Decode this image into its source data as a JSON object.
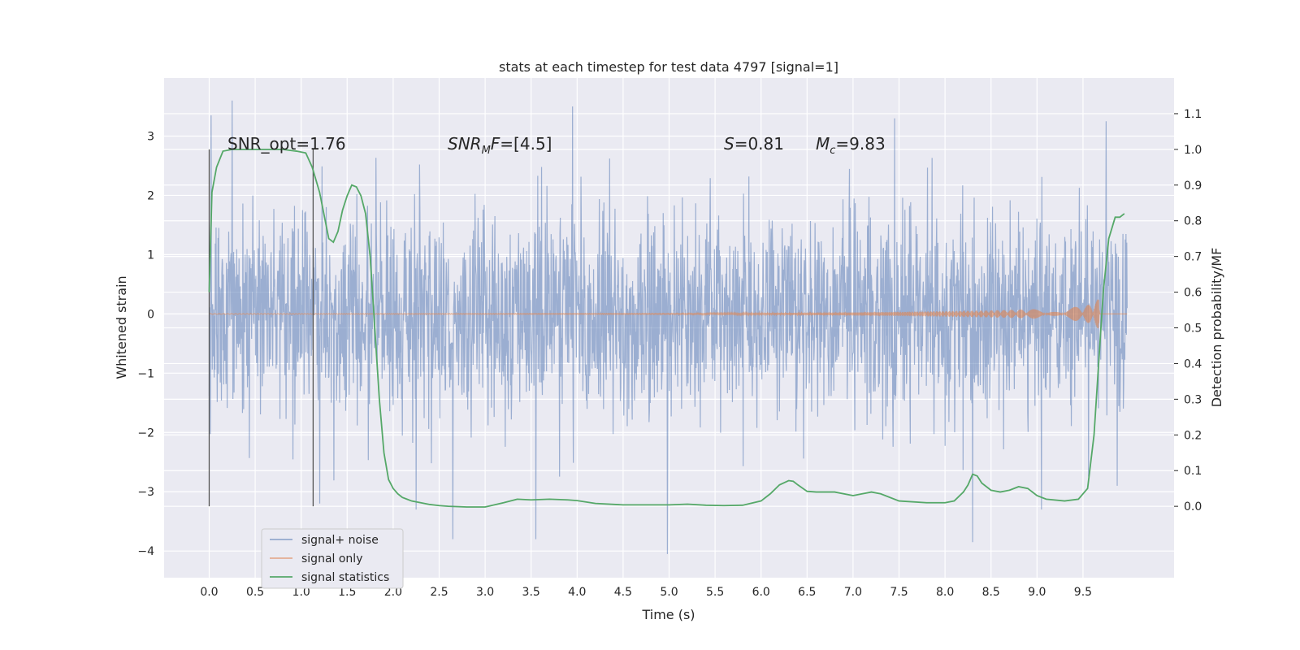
{
  "chart_data": {
    "type": "line",
    "title": "stats at each timestep for test data 4797 [signal=1]",
    "xlabel": "Time (s)",
    "ylabel": "Whitened strain",
    "y2label": "Detection probability/MF",
    "xlim": [
      -0.49,
      10.49
    ],
    "ylim": [
      -4.45,
      3.98
    ],
    "y2lim": [
      -0.2,
      1.2
    ],
    "xticks": [
      "0.0",
      "0.5",
      "1.0",
      "1.5",
      "2.0",
      "2.5",
      "3.0",
      "3.5",
      "4.0",
      "4.5",
      "5.0",
      "5.5",
      "6.0",
      "6.5",
      "7.0",
      "7.5",
      "8.0",
      "8.5",
      "9.0",
      "9.5"
    ],
    "yticks": [
      "-4",
      "-3",
      "-2",
      "-1",
      "0",
      "1",
      "2",
      "3"
    ],
    "y2ticks": [
      "0.0",
      "0.1",
      "0.2",
      "0.3",
      "0.4",
      "0.5",
      "0.6",
      "0.7",
      "0.8",
      "0.9",
      "1.0",
      "1.1"
    ],
    "grid": true,
    "legend_position": "lower-left",
    "annotations": [
      {
        "text": "SNR_opt=1.76",
        "x": 0.2
      },
      {
        "text": "SNR_MF=[4.5]",
        "x": 2.6
      },
      {
        "text": "S=0.81",
        "x": 5.6
      },
      {
        "text": "M_c=9.83",
        "x": 6.6
      }
    ],
    "vertical_markers": [
      0.0,
      1.13
    ],
    "series": [
      {
        "name": "signal+ noise",
        "color": "#4c72b0",
        "t_range": [
          0,
          9.98
        ],
        "envelope_std": 0.85,
        "extremes": [
          [
            0.02,
            3.35
          ],
          [
            0.25,
            3.6
          ],
          [
            1.2,
            -3.2
          ],
          [
            2.25,
            -3.3
          ],
          [
            2.65,
            -3.8
          ],
          [
            3.95,
            3.5
          ],
          [
            3.55,
            -3.8
          ],
          [
            4.98,
            -4.05
          ],
          [
            7.45,
            3.3
          ],
          [
            8.3,
            -3.85
          ],
          [
            9.05,
            -3.3
          ],
          [
            9.75,
            3.25
          ],
          [
            9.87,
            -2.9
          ]
        ]
      },
      {
        "name": "signal only",
        "color": "#dd8452",
        "t": [
          0,
          5.0,
          6.5,
          7.5,
          8.5,
          9.0,
          9.3,
          9.5,
          9.6,
          9.65,
          9.67,
          9.68,
          9.98
        ],
        "amplitude": [
          0.005,
          0.008,
          0.02,
          0.035,
          0.06,
          0.08,
          0.1,
          0.13,
          0.17,
          0.22,
          0.27,
          0.0,
          0.0
        ]
      },
      {
        "name": "signal statistics",
        "color": "#55a868",
        "x": [
          0.0,
          0.03,
          0.08,
          0.15,
          0.25,
          0.4,
          0.6,
          0.8,
          0.95,
          1.05,
          1.12,
          1.2,
          1.3,
          1.35,
          1.4,
          1.45,
          1.5,
          1.55,
          1.6,
          1.65,
          1.7,
          1.75,
          1.8,
          1.85,
          1.9,
          1.95,
          2.0,
          2.05,
          2.1,
          2.15,
          2.2,
          2.3,
          2.4,
          2.5,
          2.6,
          2.8,
          3.0,
          3.2,
          3.35,
          3.5,
          3.7,
          3.9,
          4.0,
          4.2,
          4.5,
          4.8,
          5.0,
          5.2,
          5.4,
          5.6,
          5.8,
          6.0,
          6.1,
          6.2,
          6.3,
          6.35,
          6.4,
          6.5,
          6.6,
          6.8,
          7.0,
          7.1,
          7.2,
          7.3,
          7.5,
          7.8,
          8.0,
          8.1,
          8.2,
          8.25,
          8.3,
          8.35,
          8.4,
          8.5,
          8.6,
          8.7,
          8.8,
          8.9,
          9.0,
          9.1,
          9.3,
          9.45,
          9.55,
          9.62,
          9.67,
          9.72,
          9.78,
          9.85,
          9.9,
          9.95
        ],
        "y": [
          0.6,
          0.88,
          0.95,
          0.995,
          1.0,
          1.0,
          1.0,
          1.0,
          0.995,
          0.99,
          0.95,
          0.88,
          0.75,
          0.74,
          0.77,
          0.83,
          0.87,
          0.9,
          0.895,
          0.87,
          0.82,
          0.7,
          0.5,
          0.3,
          0.15,
          0.075,
          0.05,
          0.035,
          0.025,
          0.02,
          0.015,
          0.01,
          0.005,
          0.002,
          0.0,
          -0.002,
          -0.002,
          0.01,
          0.02,
          0.018,
          0.02,
          0.018,
          0.016,
          0.008,
          0.004,
          0.004,
          0.004,
          0.006,
          0.003,
          0.002,
          0.003,
          0.015,
          0.035,
          0.06,
          0.072,
          0.07,
          0.06,
          0.042,
          0.04,
          0.04,
          0.03,
          0.035,
          0.04,
          0.035,
          0.015,
          0.01,
          0.01,
          0.015,
          0.04,
          0.06,
          0.09,
          0.085,
          0.065,
          0.045,
          0.04,
          0.045,
          0.055,
          0.05,
          0.03,
          0.02,
          0.015,
          0.02,
          0.05,
          0.2,
          0.4,
          0.6,
          0.75,
          0.81,
          0.81,
          0.82
        ]
      }
    ]
  }
}
